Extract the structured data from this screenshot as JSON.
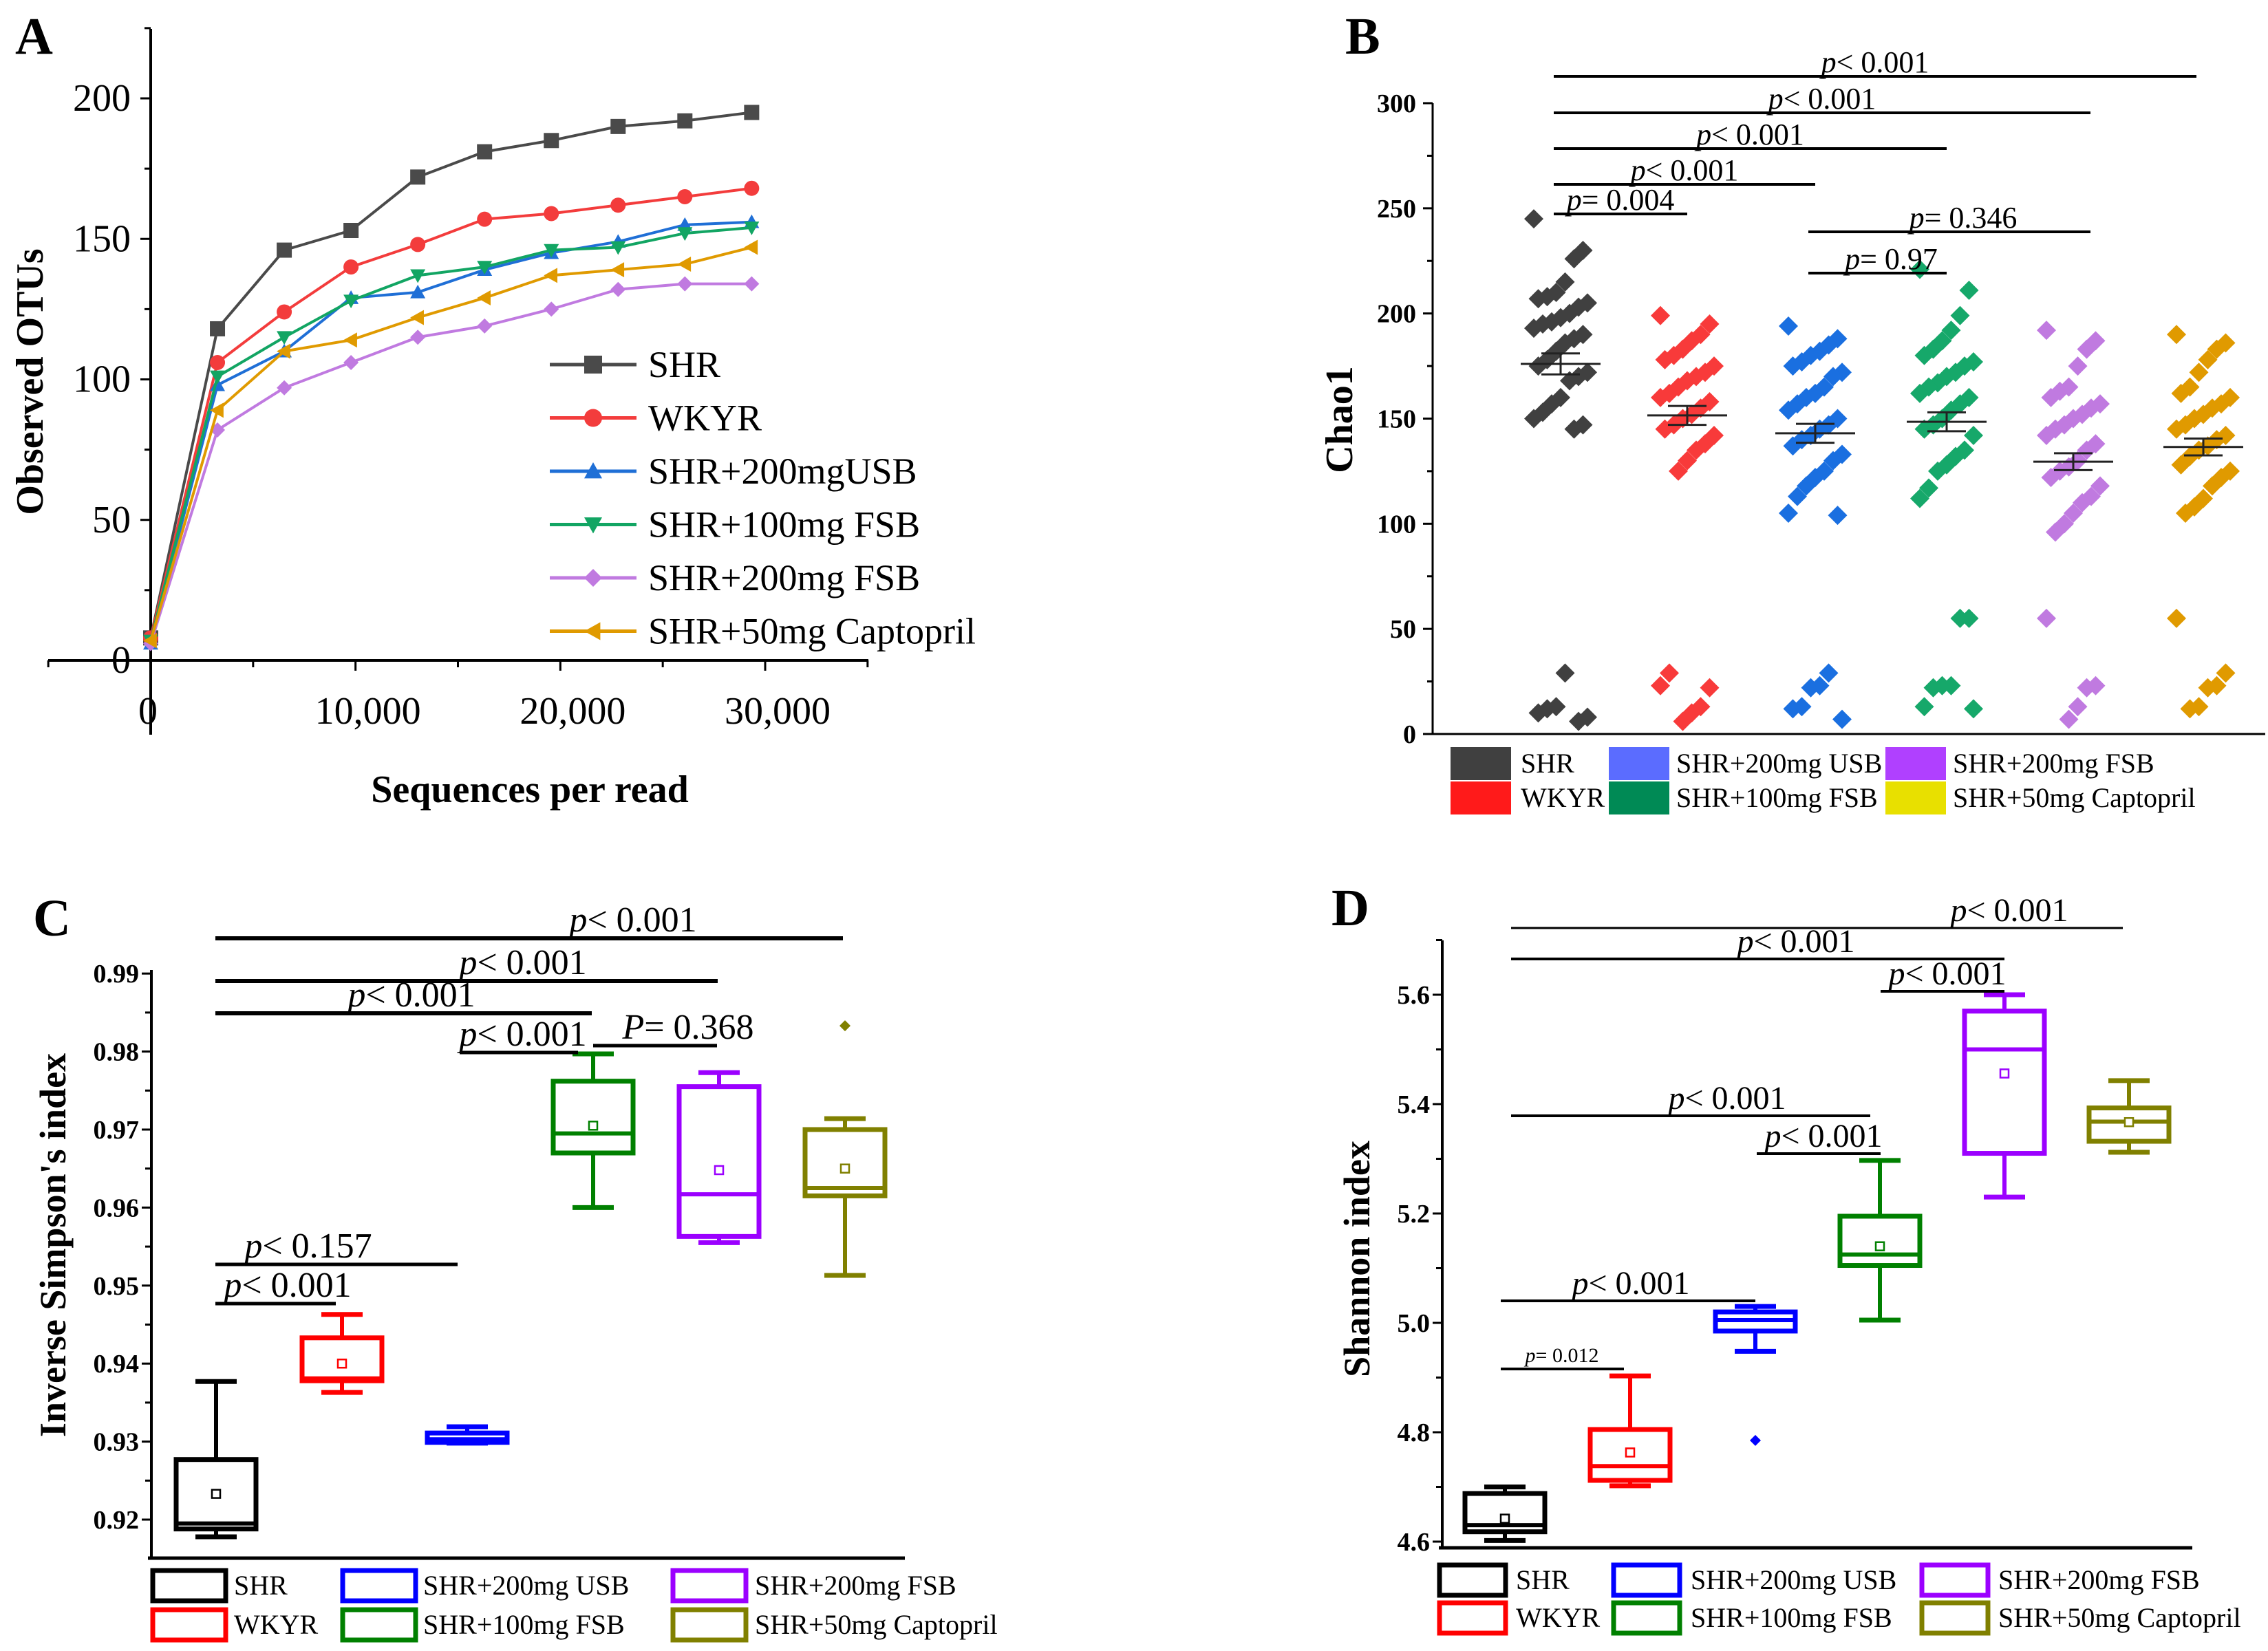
{
  "chart_data": [
    {
      "panel": "A",
      "type": "line",
      "xlabel": "Sequences per read",
      "ylabel": "Observed OTUs",
      "xlim": [
        -5000,
        35000
      ],
      "ylim": [
        0,
        225
      ],
      "xticks": [
        0,
        10000,
        20000,
        30000
      ],
      "xtick_labels": [
        "0",
        "10,000",
        "20,000",
        "30,000"
      ],
      "yticks": [
        0,
        50,
        100,
        150,
        200
      ],
      "ytick_labels": [
        "0",
        "50",
        "100",
        "150",
        "200"
      ],
      "x": [
        0,
        3260,
        6520,
        9780,
        13040,
        16300,
        19560,
        22820,
        26080,
        29340
      ],
      "legend_position": "center-right",
      "series": [
        {
          "name": "SHR",
          "color": "#4a4a4a",
          "marker": "square",
          "values": [
            8,
            118,
            146,
            153,
            172,
            181,
            185,
            190,
            192,
            195
          ]
        },
        {
          "name": "WKYR",
          "color": "#f33c3c",
          "marker": "circle",
          "values": [
            8,
            106,
            124,
            140,
            148,
            157,
            159,
            162,
            165,
            168
          ]
        },
        {
          "name": "SHR+200mgUSB",
          "color": "#1f6fd6",
          "marker": "triangle-up",
          "values": [
            6,
            98,
            110,
            129,
            131,
            139,
            145,
            149,
            155,
            156
          ]
        },
        {
          "name": "SHR+100mg FSB",
          "color": "#12a563",
          "marker": "triangle-down",
          "values": [
            7,
            101,
            115,
            128,
            137,
            140,
            146,
            147,
            152,
            154
          ]
        },
        {
          "name": "SHR+200mg FSB",
          "color": "#c07ae0",
          "marker": "diamond",
          "values": [
            6,
            82,
            97,
            106,
            115,
            119,
            125,
            132,
            134,
            134
          ]
        },
        {
          "name": "SHR+50mg Captopril",
          "color": "#e09a00",
          "marker": "triangle-left",
          "values": [
            7,
            89,
            110,
            114,
            122,
            129,
            137,
            139,
            141,
            147
          ]
        }
      ]
    },
    {
      "panel": "B",
      "type": "scatter",
      "ylabel": "Chao1",
      "ylim": [
        0,
        300
      ],
      "yticks": [
        0,
        50,
        100,
        150,
        200,
        250,
        300
      ],
      "ytick_labels": [
        "0",
        "50",
        "100",
        "150",
        "200",
        "250",
        "300"
      ],
      "legend_position": "bottom",
      "groups": [
        {
          "name": "SHR",
          "color": "#404040",
          "legend_color": "#404040",
          "mean": 176,
          "sem": 5,
          "values": [
            245,
            230,
            226,
            215,
            210,
            208,
            207,
            205,
            203,
            200,
            198,
            196,
            195,
            193,
            190,
            188,
            186,
            182,
            178,
            175,
            172,
            170,
            168,
            160,
            157,
            153,
            150,
            147,
            145,
            29,
            13,
            12,
            10,
            8,
            6
          ]
        },
        {
          "name": "WKYR",
          "color": "#f83a3a",
          "legend_color": "#ff1a1a",
          "mean": 151.5,
          "sem": 4.5,
          "values": [
            199,
            195,
            190,
            187,
            183,
            180,
            178,
            175,
            172,
            170,
            168,
            165,
            162,
            160,
            158,
            155,
            152,
            150,
            147,
            145,
            142,
            138,
            135,
            130,
            125,
            29,
            23,
            22,
            13,
            10,
            6
          ]
        },
        {
          "name": "SHR+200mg USB",
          "color": "#1a6fe0",
          "legend_color": "#5b6cff",
          "mean": 143,
          "sem": 4.5,
          "values": [
            194,
            188,
            185,
            182,
            180,
            177,
            175,
            172,
            170,
            165,
            162,
            160,
            157,
            154,
            150,
            147,
            145,
            142,
            140,
            137,
            133,
            130,
            125,
            122,
            118,
            113,
            105,
            104,
            29,
            23,
            22,
            13,
            12,
            7
          ]
        },
        {
          "name": "SHR+100mg FSB",
          "color": "#16a86a",
          "legend_color": "#008a55",
          "mean": 148.5,
          "sem": 4.5,
          "values": [
            221,
            211,
            199,
            192,
            187,
            183,
            180,
            177,
            175,
            172,
            170,
            167,
            165,
            162,
            160,
            157,
            154,
            150,
            147,
            145,
            142,
            135,
            132,
            128,
            125,
            117,
            112,
            55,
            55,
            23,
            23,
            22,
            13,
            12
          ]
        },
        {
          "name": "SHR+200mg FSB",
          "color": "#c07ae0",
          "legend_color": "#b040ff",
          "mean": 129.5,
          "sem": 4,
          "values": [
            192,
            187,
            183,
            175,
            165,
            163,
            160,
            157,
            155,
            152,
            150,
            147,
            145,
            142,
            138,
            135,
            130,
            127,
            125,
            122,
            118,
            113,
            110,
            105,
            100,
            96,
            55,
            23,
            22,
            13,
            7
          ]
        },
        {
          "name": "SHR+50mg Captopril",
          "color": "#e09a00",
          "legend_color": "#e8e000",
          "mean": 136.5,
          "sem": 4,
          "values": [
            190,
            186,
            183,
            178,
            172,
            165,
            162,
            160,
            157,
            155,
            152,
            150,
            147,
            145,
            142,
            140,
            137,
            135,
            132,
            128,
            125,
            122,
            118,
            112,
            108,
            105,
            55,
            29,
            23,
            22,
            13,
            12
          ]
        }
      ],
      "comparisons": [
        {
          "from": 0,
          "to": 5,
          "stat": "p",
          "value": "< 0.001"
        },
        {
          "from": 0,
          "to": 4,
          "stat": "p",
          "value": "< 0.001"
        },
        {
          "from": 0,
          "to": 3,
          "stat": "p",
          "value": "< 0.001"
        },
        {
          "from": 0,
          "to": 2,
          "stat": "p",
          "value": "< 0.001"
        },
        {
          "from": 0,
          "to": 1,
          "stat": "p",
          "value": "= 0.004"
        },
        {
          "from": 2,
          "to": 4,
          "stat": "p",
          "value": "= 0.346"
        },
        {
          "from": 2,
          "to": 3,
          "stat": "p",
          "value": "= 0.97"
        }
      ]
    },
    {
      "panel": "C",
      "type": "box",
      "ylabel": "Inverse Simpson's index",
      "ylim": [
        0.915,
        0.991
      ],
      "yticks": [
        0.92,
        0.93,
        0.94,
        0.95,
        0.96,
        0.97,
        0.98,
        0.99
      ],
      "ytick_labels": [
        "0.92",
        "0.93",
        "0.94",
        "0.95",
        "0.96",
        "0.97",
        "0.98",
        "0.99"
      ],
      "legend_position": "bottom",
      "groups": [
        {
          "name": "SHR",
          "color": "#000000",
          "min": 0.9178,
          "q1": 0.9188,
          "median": 0.9195,
          "q3": 0.9277,
          "max": 0.9377,
          "mean": 0.9233,
          "outliers": []
        },
        {
          "name": "WKYR",
          "color": "#ff0000",
          "min": 0.9363,
          "q1": 0.9378,
          "median": 0.9381,
          "q3": 0.9433,
          "max": 0.9463,
          "mean": 0.94,
          "outliers": []
        },
        {
          "name": "SHR+200mg USB",
          "color": "#0000ff",
          "min": 0.9298,
          "q1": 0.9299,
          "median": 0.9303,
          "q3": 0.9311,
          "max": 0.9319,
          "mean": null,
          "outliers": []
        },
        {
          "name": "SHR+100mg FSB",
          "color": "#008000",
          "min": 0.96,
          "q1": 0.967,
          "median": 0.9695,
          "q3": 0.9762,
          "max": 0.9797,
          "mean": 0.9705,
          "outliers": []
        },
        {
          "name": "SHR+200mg FSB",
          "color": "#9b00ff",
          "min": 0.9555,
          "q1": 0.9563,
          "median": 0.9617,
          "q3": 0.9755,
          "max": 0.9773,
          "mean": 0.9648,
          "outliers": []
        },
        {
          "name": "SHR+50mg Captopril",
          "color": "#808000",
          "min": 0.9513,
          "q1": 0.9615,
          "median": 0.9625,
          "q3": 0.97,
          "max": 0.9714,
          "mean": 0.965,
          "outliers": [
            0.9833
          ]
        }
      ],
      "comparisons": [
        {
          "from": 0,
          "to": 5,
          "stat": "p",
          "value": "< 0.001"
        },
        {
          "from": 0,
          "to": 4,
          "stat": "p",
          "value": "< 0.001"
        },
        {
          "from": 0,
          "to": 3,
          "stat": "p",
          "value": "< 0.001"
        },
        {
          "from": 2,
          "to": 3,
          "stat": "p",
          "value": "< 0.001"
        },
        {
          "from": 3,
          "to": 4,
          "stat": "P",
          "value": "= 0.368"
        },
        {
          "from": 0,
          "to": 2,
          "stat": "p",
          "value": "< 0.157"
        },
        {
          "from": 0,
          "to": 1,
          "stat": "p",
          "value": "< 0.001"
        }
      ]
    },
    {
      "panel": "D",
      "type": "box",
      "ylabel": "Shannon index",
      "ylim": [
        4.59,
        5.71
      ],
      "yticks": [
        4.6,
        4.8,
        5.0,
        5.2,
        5.4,
        5.6
      ],
      "ytick_labels": [
        "4.6",
        "4.8",
        "5.0",
        "5.2",
        "5.4",
        "5.6"
      ],
      "legend_position": "bottom",
      "groups": [
        {
          "name": "SHR",
          "color": "#000000",
          "min": 4.602,
          "q1": 4.618,
          "median": 4.63,
          "q3": 4.688,
          "max": 4.7,
          "mean": 4.642,
          "outliers": []
        },
        {
          "name": "WKYR",
          "color": "#ff0000",
          "min": 4.702,
          "q1": 4.712,
          "median": 4.738,
          "q3": 4.805,
          "max": 4.903,
          "mean": 4.763,
          "outliers": []
        },
        {
          "name": "SHR+200mg USB",
          "color": "#0000ff",
          "min": 4.948,
          "q1": 4.985,
          "median": 5.005,
          "q3": 5.02,
          "max": 5.03,
          "mean": null,
          "outliers": [
            4.785
          ]
        },
        {
          "name": "SHR+100mg FSB",
          "color": "#008000",
          "min": 5.005,
          "q1": 5.105,
          "median": 5.125,
          "q3": 5.195,
          "max": 5.297,
          "mean": 5.14,
          "outliers": []
        },
        {
          "name": "SHR+200mg FSB",
          "color": "#9b00ff",
          "min": 5.23,
          "q1": 5.31,
          "median": 5.5,
          "q3": 5.57,
          "max": 5.6,
          "mean": 5.456,
          "outliers": []
        },
        {
          "name": "SHR+50mg Captopril",
          "color": "#808000",
          "min": 5.312,
          "q1": 5.332,
          "median": 5.368,
          "q3": 5.393,
          "max": 5.443,
          "mean": 5.367,
          "outliers": []
        }
      ],
      "comparisons": [
        {
          "from": 0,
          "to": 5,
          "stat": "p",
          "value": "< 0.001"
        },
        {
          "from": 0,
          "to": 4,
          "stat": "p",
          "value": "< 0.001"
        },
        {
          "from": 3,
          "to": 4,
          "stat": "p",
          "value": "< 0.001"
        },
        {
          "from": 0,
          "to": 3,
          "stat": "p",
          "value": "< 0.001"
        },
        {
          "from": 2,
          "to": 3,
          "stat": "p",
          "value": "< 0.001"
        },
        {
          "from": 0,
          "to": 2,
          "stat": "p",
          "value": "< 0.001"
        },
        {
          "from": 0,
          "to": 1,
          "stat": "p",
          "value": "= 0.012"
        }
      ]
    }
  ]
}
